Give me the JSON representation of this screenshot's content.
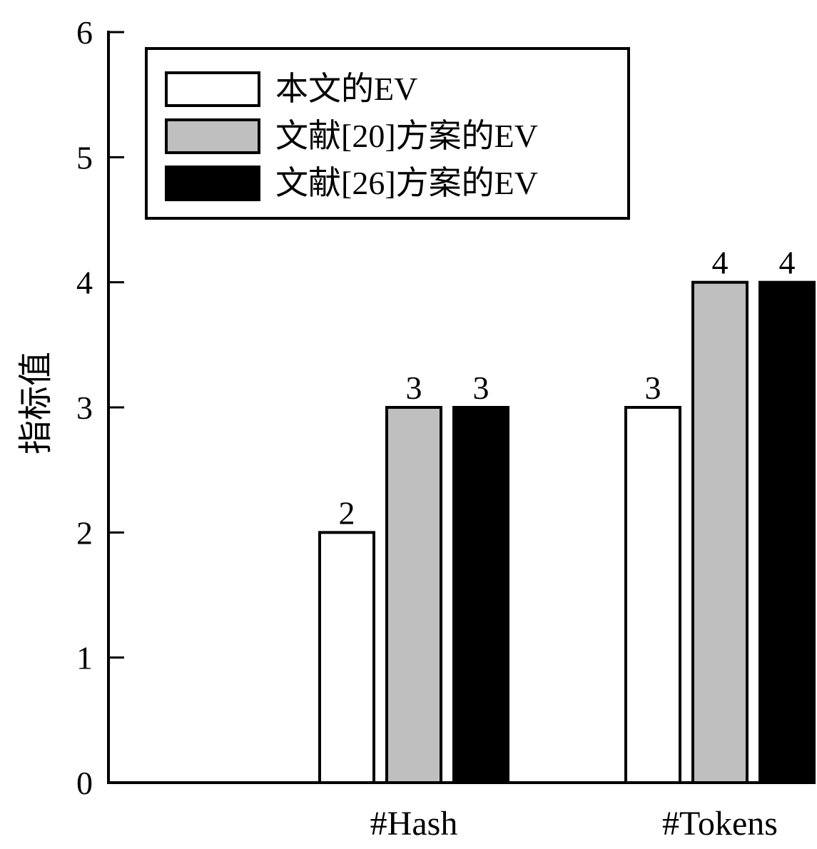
{
  "chart_data": {
    "type": "bar",
    "categories": [
      "#Hash",
      "#Tokens"
    ],
    "series": [
      {
        "name": "本文的EV",
        "values": [
          2,
          3
        ],
        "color": "#ffffff"
      },
      {
        "name": "文献[20]方案的EV",
        "values": [
          3,
          4
        ],
        "color": "#bfbfbf"
      },
      {
        "name": "文献[26]方案的EV",
        "values": [
          3,
          4
        ],
        "color": "#000000"
      }
    ],
    "data_labels": [
      [
        "2",
        "3"
      ],
      [
        "3",
        "4"
      ],
      [
        "3",
        "4"
      ]
    ],
    "ylabel": "指标值",
    "xlabel": "",
    "ylim": [
      0,
      6
    ],
    "yticks": [
      0,
      1,
      2,
      3,
      4,
      5,
      6
    ],
    "grid": false,
    "legend_position": "top-left"
  }
}
